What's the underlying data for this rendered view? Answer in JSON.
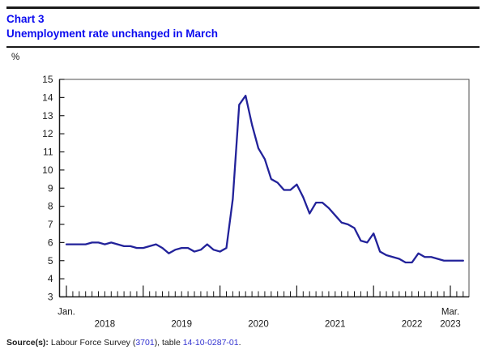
{
  "header": {
    "chart_label": "Chart 3",
    "title": "Unemployment rate unchanged in March"
  },
  "colors": {
    "title_blue": "#0b0bef",
    "line_blue": "#22229a",
    "link_blue": "#3434d1",
    "axis_black": "#1a1a1a"
  },
  "chart_data": {
    "type": "line",
    "title": "Unemployment rate unchanged in March",
    "ylabel": "%",
    "ylim": [
      3,
      15
    ],
    "ytick_step": 1,
    "grid": false,
    "legend": "none",
    "x_start": "Jan. 2018",
    "x_end": "Mar. 2023",
    "x_first_tick_label": "Jan.",
    "x_last_tick_label": "Mar.",
    "x_year_labels": [
      "2018",
      "2019",
      "2020",
      "2021",
      "2022",
      "2023"
    ],
    "line_color": "#22229a",
    "values": [
      5.9,
      5.9,
      5.9,
      5.9,
      6.0,
      6.0,
      5.9,
      6.0,
      5.9,
      5.8,
      5.8,
      5.7,
      5.7,
      5.8,
      5.9,
      5.7,
      5.4,
      5.6,
      5.7,
      5.7,
      5.5,
      5.6,
      5.9,
      5.6,
      5.5,
      5.7,
      8.4,
      13.6,
      14.1,
      12.5,
      11.2,
      10.6,
      9.5,
      9.3,
      8.9,
      8.9,
      9.2,
      8.5,
      7.6,
      8.2,
      8.2,
      7.9,
      7.5,
      7.1,
      7.0,
      6.8,
      6.1,
      6.0,
      6.5,
      5.5,
      5.3,
      5.2,
      5.1,
      4.9,
      4.9,
      5.4,
      5.2,
      5.2,
      5.1,
      5.0,
      5.0,
      5.0,
      5.0
    ]
  },
  "footer": {
    "source_prefix": "Source(s):",
    "text_1": " Labour Force Survey (",
    "link_survey": "3701",
    "text_2": "), table ",
    "link_table": "14-10-0287-01",
    "text_3": "."
  }
}
